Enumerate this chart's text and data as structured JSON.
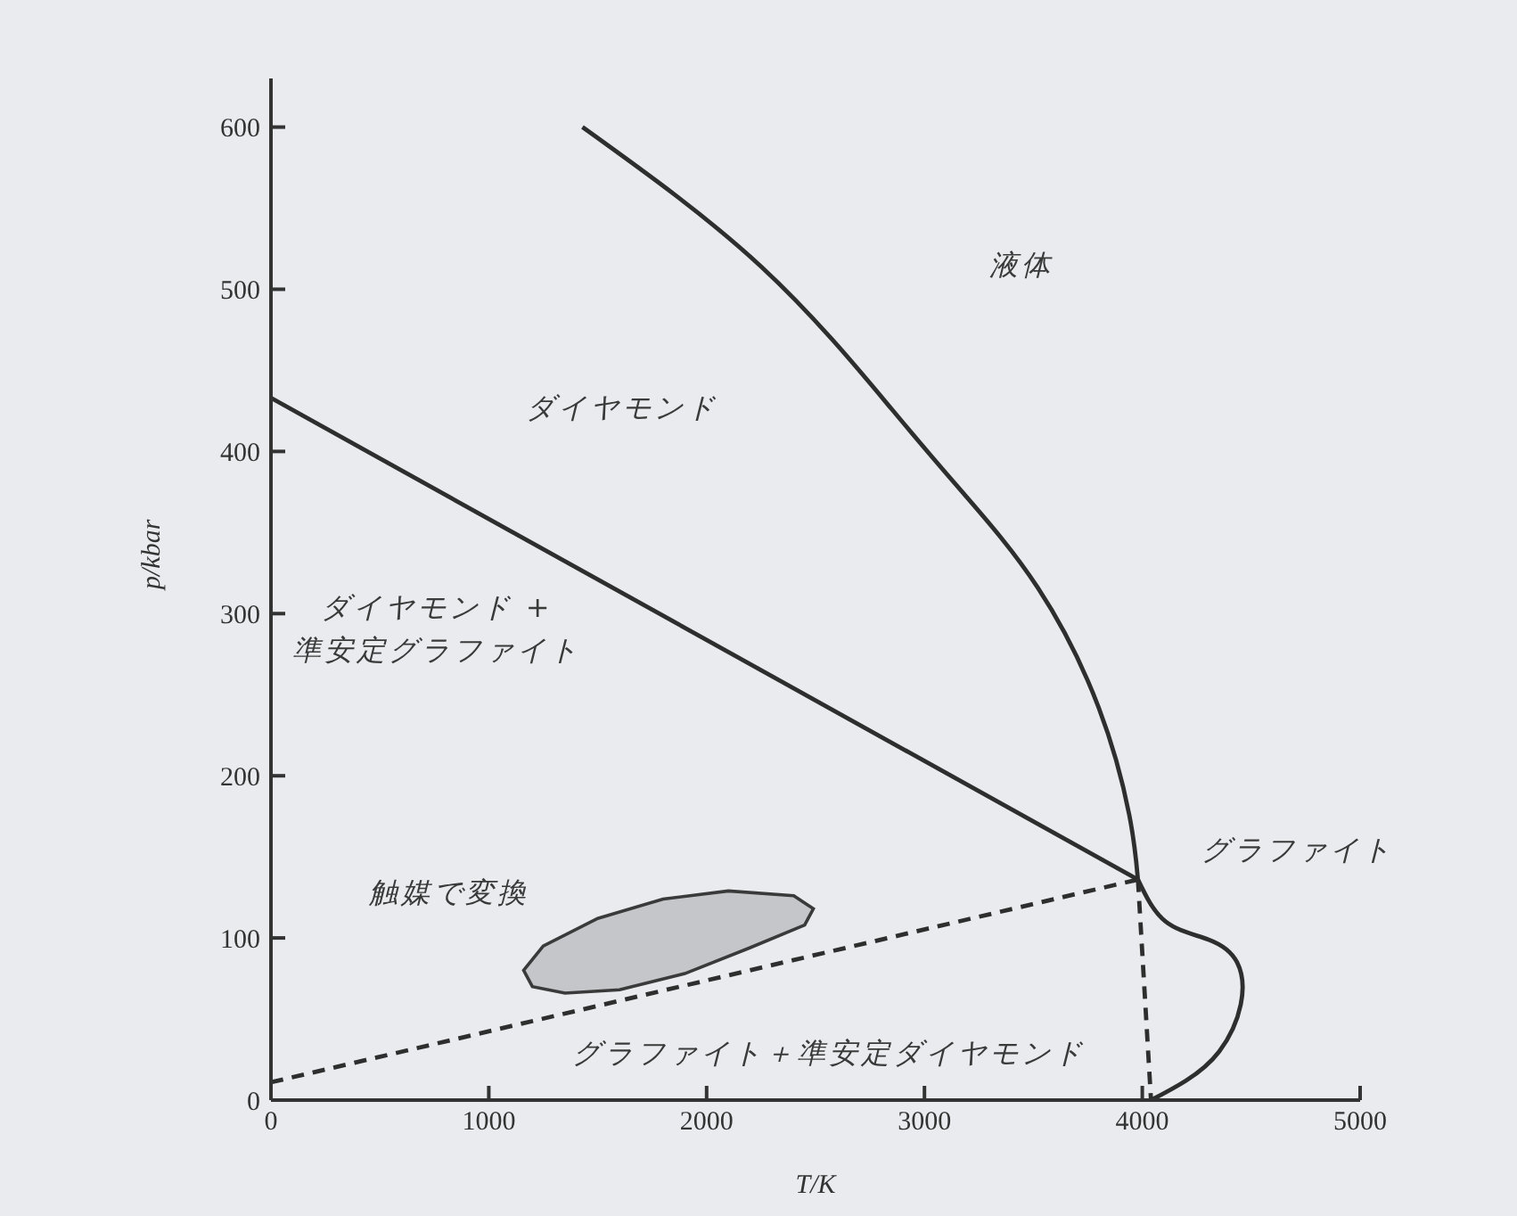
{
  "chart_data": {
    "type": "line",
    "xlabel": "T/K",
    "ylabel": "p/kbar",
    "xlim": [
      0,
      5000
    ],
    "ylim": [
      0,
      630
    ],
    "xticks": [
      0,
      1000,
      2000,
      3000,
      4000,
      5000
    ],
    "yticks": [
      0,
      100,
      200,
      300,
      400,
      500,
      600
    ],
    "series": [
      {
        "type": "line",
        "color": "#2e2e2e",
        "x": [
          0,
          3980
        ],
        "values": [
          433,
          136
        ]
      },
      {
        "type": "line",
        "color": "#2e2e2e",
        "x": [
          1430,
          2250,
          2850,
          3180,
          3520,
          3800,
          3940,
          3980
        ],
        "values": [
          600,
          514,
          426,
          374,
          316,
          242,
          176,
          136
        ]
      },
      {
        "type": "line",
        "color": "#2e2e2e",
        "x": [
          3980,
          4108,
          4304,
          4435,
          4452,
          4353,
          4200,
          4040
        ],
        "values": [
          136,
          110,
          99,
          85,
          59,
          30,
          12,
          0
        ]
      },
      {
        "type": "line",
        "line_style": "dashed",
        "color": "#2e2e2e",
        "x": [
          0,
          3980
        ],
        "values": [
          11,
          136
        ]
      },
      {
        "type": "line",
        "line_style": "dashed",
        "color": "#2e2e2e",
        "x": [
          3980,
          4040
        ],
        "values": [
          136,
          0
        ]
      },
      {
        "type": "area",
        "color": "#c4c6ca",
        "x": [
          1160,
          1250,
          1500,
          1800,
          2100,
          2400,
          2490,
          2450,
          2200,
          1900,
          1600,
          1350,
          1200,
          1160
        ],
        "values": [
          80,
          95,
          112,
          124,
          129,
          126,
          118,
          108,
          94,
          78,
          68,
          66,
          70,
          80
        ]
      }
    ],
    "annotations": [
      "液体",
      "ダイヤモンド",
      "ダイヤモンド +\n準安定グラファイト",
      "触媒で変換",
      "グラファイト",
      "グラファイト＋準安定ダイヤモンド"
    ]
  }
}
